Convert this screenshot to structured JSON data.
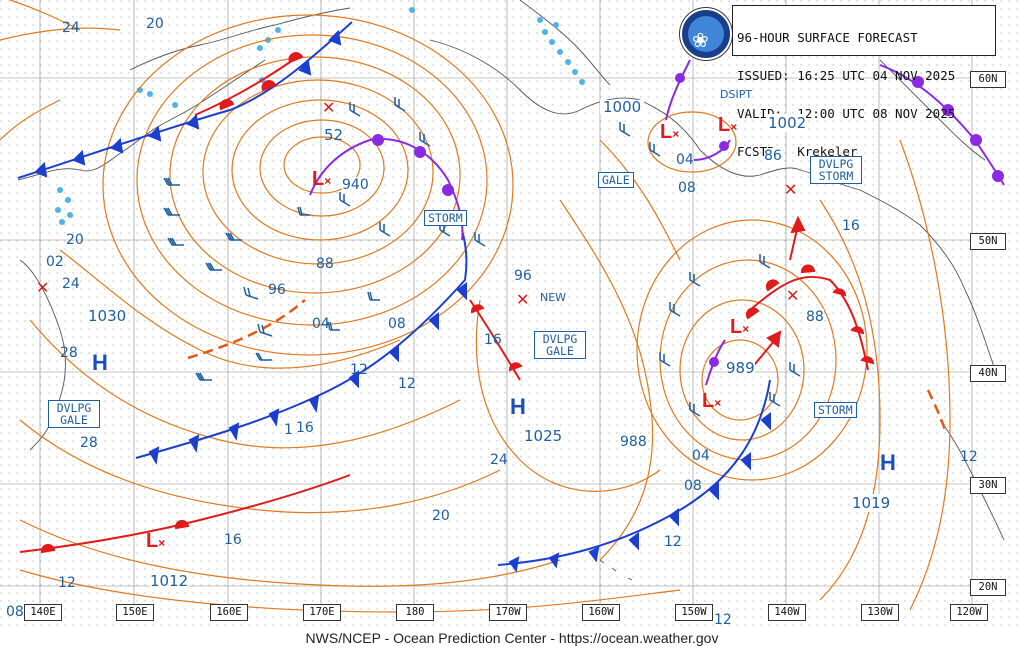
{
  "header": {
    "line1": "96-HOUR SURFACE FORECAST",
    "line2": "ISSUED: 16:25 UTC 04 NOV 2025",
    "line3": "VALID:  12:00 UTC 08 NOV 2025",
    "line4": "FCSTR:  Krekeler"
  },
  "footer": "NWS/NCEP - Ocean Prediction Center - https://ocean.weather.gov",
  "colors": {
    "isobar": "#e07a1f",
    "cold_front": "#1d3fcf",
    "warm_front": "#e01b1b",
    "occluded": "#8a2be2",
    "land": "#555555",
    "ice": "#4fb3e8"
  },
  "longitude_labels": [
    "140E",
    "150E",
    "160E",
    "170E",
    "180",
    "170W",
    "160W",
    "150W",
    "140W",
    "130W",
    "120W"
  ],
  "latitude_labels": [
    "60N",
    "50N",
    "40N",
    "30N",
    "20N"
  ],
  "pressure_centers": [
    {
      "type": "L",
      "value": "52"
    },
    {
      "type": "L",
      "value": "1000"
    },
    {
      "type": "L",
      "value": "1002"
    },
    {
      "type": "L",
      "value": "989"
    },
    {
      "type": "L",
      "value": "1012"
    },
    {
      "type": "H",
      "value": "1030"
    },
    {
      "type": "H",
      "value": "1025"
    },
    {
      "type": "H",
      "value": "1019"
    }
  ],
  "warnings": [
    "STORM",
    "GALE",
    "DVLPG STORM",
    "DVLPG GALE",
    "STORM",
    "DVLPG GALE"
  ],
  "annotations": [
    "DSIPT",
    "NEW"
  ],
  "isobar_labels": [
    "24",
    "20",
    "20",
    "24",
    "02",
    "28",
    "28",
    "940",
    "88",
    "96",
    "04",
    "08",
    "12",
    "16",
    "1",
    "16",
    "12",
    "16",
    "12",
    "96",
    "24",
    "20",
    "04",
    "08",
    "86",
    "16",
    "88",
    "988",
    "04",
    "08",
    "12",
    "12",
    "12",
    "08",
    "12"
  ]
}
